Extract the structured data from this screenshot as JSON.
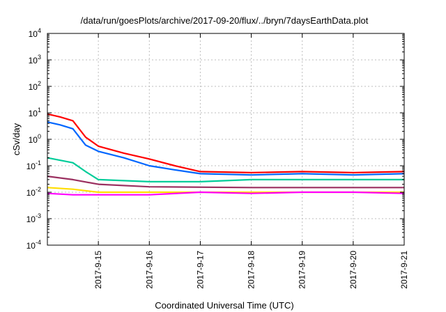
{
  "chart_data": {
    "type": "line",
    "title": "/data/run/goesPlots/archive/2017-09-20/flux/../bryn/7daysEarthData.plot",
    "xlabel": "Coordinated Universal Time (UTC)",
    "ylabel": "cSv/day",
    "xlim": [
      "2017-09-14",
      "2017-09-21"
    ],
    "ylim": [
      0.0001,
      10000
    ],
    "yscale": "log",
    "grid": true,
    "x_ticks": [
      "2017-9-15",
      "2017-9-16",
      "2017-9-17",
      "2017-9-18",
      "2017-9-19",
      "2017-9-20",
      "2017-9-21"
    ],
    "y_ticks": [
      {
        "base": "10",
        "exp": "-4"
      },
      {
        "base": "10",
        "exp": "-3"
      },
      {
        "base": "10",
        "exp": "-2"
      },
      {
        "base": "10",
        "exp": "-1"
      },
      {
        "base": "10",
        "exp": "0"
      },
      {
        "base": "10",
        "exp": "1"
      },
      {
        "base": "10",
        "exp": "2"
      },
      {
        "base": "10",
        "exp": "3"
      },
      {
        "base": "10",
        "exp": "4"
      }
    ],
    "series": [
      {
        "color": "#ff0000",
        "x": [
          "2017-09-14 00:00",
          "2017-09-14 06:00",
          "2017-09-14 12:00",
          "2017-09-14 18:00",
          "2017-09-15 00:00",
          "2017-09-15 12:00",
          "2017-09-16 00:00",
          "2017-09-16 12:00",
          "2017-09-17 00:00",
          "2017-09-18 00:00",
          "2017-09-19 00:00",
          "2017-09-20 00:00",
          "2017-09-21 00:00"
        ],
        "y": [
          9,
          7,
          5,
          1.2,
          0.55,
          0.3,
          0.18,
          0.1,
          0.06,
          0.055,
          0.06,
          0.055,
          0.06
        ]
      },
      {
        "color": "#0066ff",
        "x": [
          "2017-09-14 00:00",
          "2017-09-14 06:00",
          "2017-09-14 12:00",
          "2017-09-14 18:00",
          "2017-09-15 00:00",
          "2017-09-15 12:00",
          "2017-09-16 00:00",
          "2017-09-16 12:00",
          "2017-09-17 00:00",
          "2017-09-18 00:00",
          "2017-09-19 00:00",
          "2017-09-20 00:00",
          "2017-09-21 00:00"
        ],
        "y": [
          4.5,
          3.5,
          2.5,
          0.6,
          0.35,
          0.2,
          0.1,
          0.07,
          0.05,
          0.045,
          0.05,
          0.045,
          0.05
        ]
      },
      {
        "color": "#00cc99",
        "x": [
          "2017-09-14 00:00",
          "2017-09-14 12:00",
          "2017-09-14 18:00",
          "2017-09-15 00:00",
          "2017-09-16 00:00",
          "2017-09-17 00:00",
          "2017-09-18 00:00",
          "2017-09-19 00:00",
          "2017-09-20 00:00",
          "2017-09-21 00:00"
        ],
        "y": [
          0.2,
          0.13,
          0.06,
          0.03,
          0.025,
          0.025,
          0.03,
          0.03,
          0.03,
          0.03
        ]
      },
      {
        "color": "#9b3060",
        "x": [
          "2017-09-14 00:00",
          "2017-09-14 12:00",
          "2017-09-15 00:00",
          "2017-09-16 00:00",
          "2017-09-18 00:00",
          "2017-09-21 00:00"
        ],
        "y": [
          0.04,
          0.03,
          0.02,
          0.016,
          0.015,
          0.015
        ]
      },
      {
        "color": "#ffdd00",
        "x": [
          "2017-09-14 00:00",
          "2017-09-14 12:00",
          "2017-09-15 00:00",
          "2017-09-21 00:00"
        ],
        "y": [
          0.015,
          0.013,
          0.01,
          0.01
        ]
      },
      {
        "color": "#ff00ff",
        "x": [
          "2017-09-14 00:00",
          "2017-09-14 12:00",
          "2017-09-15 00:00",
          "2017-09-16 00:00",
          "2017-09-17 00:00",
          "2017-09-18 00:00",
          "2017-09-19 00:00",
          "2017-09-20 00:00",
          "2017-09-21 00:00"
        ],
        "y": [
          0.009,
          0.008,
          0.008,
          0.008,
          0.01,
          0.009,
          0.01,
          0.01,
          0.009
        ]
      }
    ]
  }
}
